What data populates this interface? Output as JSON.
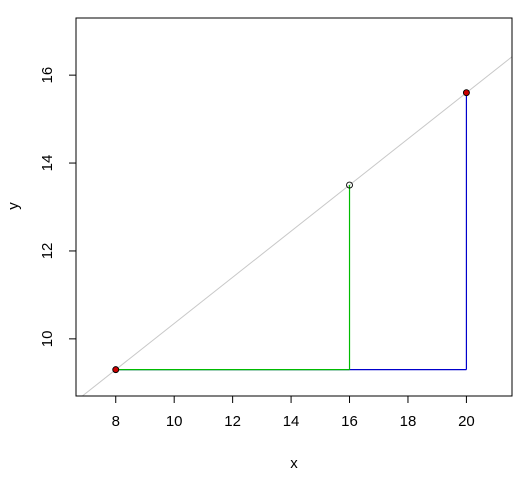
{
  "chart_data": {
    "type": "scatter",
    "title": "",
    "xlabel": "x",
    "ylabel": "y",
    "xlim": [
      6.64,
      21.56
    ],
    "ylim": [
      8.7,
      17.3
    ],
    "grid": false,
    "x_ticks": [
      8,
      10,
      12,
      14,
      16,
      18,
      20
    ],
    "y_ticks": [
      10,
      12,
      14,
      16
    ],
    "points": [
      {
        "x": 8,
        "y": 9.3,
        "filled": true,
        "color": "#cc0000"
      },
      {
        "x": 20,
        "y": 15.6,
        "filled": true,
        "color": "#cc0000"
      },
      {
        "x": 16,
        "y": 13.5,
        "filled": false,
        "color": "#000000"
      }
    ],
    "reference_line": {
      "intercept": 5.1,
      "slope": 0.525,
      "color": "#c8c8c8"
    },
    "segments": [
      {
        "x1": 8,
        "y1": 9.3,
        "x2": 20,
        "y2": 9.3,
        "color": "#0000cc"
      },
      {
        "x1": 20,
        "y1": 9.3,
        "x2": 20,
        "y2": 15.6,
        "color": "#0000cc"
      },
      {
        "x1": 8,
        "y1": 9.3,
        "x2": 16,
        "y2": 9.3,
        "color": "#00bb00"
      },
      {
        "x1": 16,
        "y1": 9.3,
        "x2": 16,
        "y2": 13.5,
        "color": "#00bb00"
      }
    ]
  }
}
